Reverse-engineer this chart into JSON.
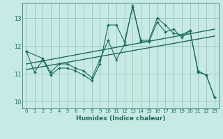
{
  "xlabel": "Humidex (Indice chaleur)",
  "bg_color": "#c8eae4",
  "grid_color": "#9eccc4",
  "line_color": "#1a6b5a",
  "xlim": [
    -0.5,
    23.5
  ],
  "ylim": [
    9.75,
    13.55
  ],
  "yticks": [
    10,
    11,
    12,
    13
  ],
  "xticks": [
    0,
    1,
    2,
    3,
    4,
    5,
    6,
    7,
    8,
    9,
    10,
    11,
    12,
    13,
    14,
    15,
    16,
    17,
    18,
    19,
    20,
    21,
    22,
    23
  ],
  "series1_x": [
    0,
    1,
    2,
    3,
    4,
    5,
    6,
    7,
    8,
    9,
    10,
    11,
    12,
    13,
    14,
    15,
    16,
    17,
    18,
    19,
    20,
    21,
    22,
    23
  ],
  "series1_y": [
    11.8,
    11.05,
    11.5,
    10.95,
    11.2,
    11.2,
    11.1,
    10.95,
    10.75,
    11.35,
    12.75,
    12.75,
    12.15,
    13.4,
    12.15,
    12.15,
    12.85,
    12.5,
    12.6,
    12.3,
    12.55,
    11.05,
    10.95,
    10.15
  ],
  "series2_x": [
    0,
    2,
    3,
    4,
    5,
    6,
    7,
    8,
    9,
    10,
    11,
    12,
    13,
    14,
    15,
    16,
    17,
    18,
    19,
    20,
    21,
    22,
    23
  ],
  "series2_y": [
    11.8,
    11.55,
    11.05,
    11.35,
    11.35,
    11.2,
    11.1,
    10.85,
    11.5,
    12.2,
    11.5,
    12.05,
    13.45,
    12.2,
    12.2,
    13.0,
    12.75,
    12.45,
    12.4,
    12.55,
    11.1,
    10.95,
    10.15
  ],
  "trend1_x": [
    0,
    23
  ],
  "trend1_y": [
    11.15,
    12.35
  ],
  "trend2_x": [
    0,
    23
  ],
  "trend2_y": [
    11.35,
    12.6
  ]
}
